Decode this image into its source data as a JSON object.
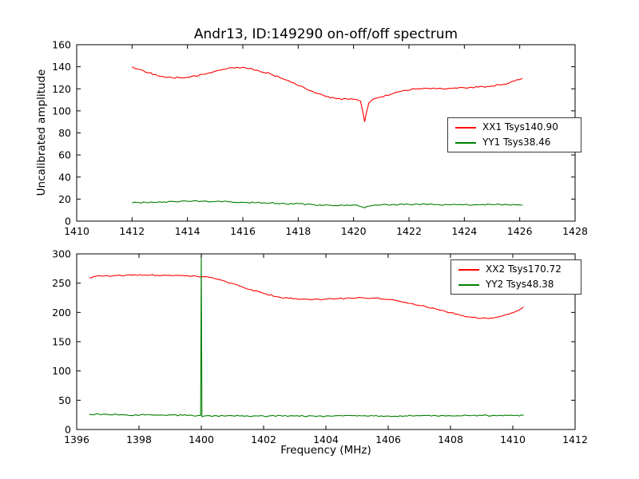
{
  "figure": {
    "title": "Andr13, ID:149290 on-off/off spectrum",
    "xlabel": "Frequency (MHz)",
    "ylabel": "Uncalibrated amplitude",
    "background": "#ffffff",
    "colors": {
      "xx": "#ff0000",
      "yy": "#008000",
      "axis": "#000000"
    }
  },
  "chart_data": [
    {
      "type": "line",
      "title": "Andr13, ID:149290 on-off/off spectrum",
      "ylabel": "Uncalibrated amplitude",
      "xlim": [
        1410,
        1428
      ],
      "ylim": [
        0,
        160
      ],
      "xticks": [
        1410,
        1412,
        1414,
        1416,
        1418,
        1420,
        1422,
        1424,
        1426,
        1428
      ],
      "yticks": [
        0,
        20,
        40,
        60,
        80,
        100,
        120,
        140,
        160
      ],
      "grid": false,
      "legend": {
        "position": "center right",
        "entries": [
          {
            "label": "XX1 Tsys140.90",
            "color": "#ff0000",
            "tsys": 140.9
          },
          {
            "label": "YY1 Tsys38.46",
            "color": "#008000",
            "tsys": 38.46
          }
        ]
      },
      "series": [
        {
          "name": "XX1",
          "color": "#ff0000",
          "points": [
            [
              1412.0,
              140
            ],
            [
              1412.3,
              137.5
            ],
            [
              1412.6,
              134.5
            ],
            [
              1413.0,
              131.5
            ],
            [
              1413.3,
              130.5
            ],
            [
              1413.7,
              130
            ],
            [
              1414.0,
              130.5
            ],
            [
              1414.4,
              132
            ],
            [
              1414.8,
              134.5
            ],
            [
              1415.2,
              137
            ],
            [
              1415.5,
              139
            ],
            [
              1415.8,
              139.5
            ],
            [
              1416.1,
              139
            ],
            [
              1416.5,
              137
            ],
            [
              1417.0,
              133.5
            ],
            [
              1417.5,
              128.5
            ],
            [
              1418.0,
              123
            ],
            [
              1418.5,
              118
            ],
            [
              1419.0,
              113
            ],
            [
              1419.4,
              111
            ],
            [
              1419.8,
              110.5
            ],
            [
              1420.1,
              110.5
            ],
            [
              1420.25,
              109
            ],
            [
              1420.35,
              97
            ],
            [
              1420.4,
              90
            ],
            [
              1420.45,
              97
            ],
            [
              1420.55,
              107
            ],
            [
              1420.7,
              110.5
            ],
            [
              1421.0,
              112.5
            ],
            [
              1421.4,
              115.5
            ],
            [
              1421.8,
              118.5
            ],
            [
              1422.2,
              120
            ],
            [
              1422.6,
              120.5
            ],
            [
              1423.0,
              120
            ],
            [
              1423.5,
              120.5
            ],
            [
              1424.0,
              121
            ],
            [
              1424.5,
              121.5
            ],
            [
              1425.0,
              122.5
            ],
            [
              1425.4,
              124
            ],
            [
              1425.8,
              127
            ],
            [
              1426.1,
              129.5
            ]
          ]
        },
        {
          "name": "YY1",
          "color": "#008000",
          "points": [
            [
              1412.0,
              16.5
            ],
            [
              1412.5,
              17
            ],
            [
              1413.0,
              17.5
            ],
            [
              1413.5,
              17.8
            ],
            [
              1414.0,
              18
            ],
            [
              1414.5,
              18
            ],
            [
              1415.0,
              17.8
            ],
            [
              1415.5,
              17.5
            ],
            [
              1416.0,
              17
            ],
            [
              1416.5,
              16.8
            ],
            [
              1417.0,
              16.5
            ],
            [
              1417.5,
              16
            ],
            [
              1418.0,
              15.8
            ],
            [
              1418.5,
              15
            ],
            [
              1418.9,
              14.2
            ],
            [
              1419.2,
              14.3
            ],
            [
              1419.6,
              14.5
            ],
            [
              1420.0,
              14.6
            ],
            [
              1420.3,
              13
            ],
            [
              1420.4,
              12
            ],
            [
              1420.5,
              13.5
            ],
            [
              1420.8,
              14.8
            ],
            [
              1421.2,
              15
            ],
            [
              1422.0,
              15.2
            ],
            [
              1423.0,
              15.2
            ],
            [
              1424.0,
              15
            ],
            [
              1425.0,
              15
            ],
            [
              1425.6,
              14.8
            ],
            [
              1426.1,
              14.5
            ]
          ]
        }
      ]
    },
    {
      "type": "line",
      "xlabel": "Frequency (MHz)",
      "xlim": [
        1396,
        1412
      ],
      "ylim": [
        0,
        300
      ],
      "xticks": [
        1396,
        1398,
        1400,
        1402,
        1404,
        1406,
        1408,
        1410,
        1412
      ],
      "yticks": [
        0,
        50,
        100,
        150,
        200,
        250,
        300
      ],
      "grid": false,
      "legend": {
        "position": "upper right",
        "entries": [
          {
            "label": "XX2 Tsys170.72",
            "color": "#ff0000",
            "tsys": 170.72
          },
          {
            "label": "YY2 Tsys48.38",
            "color": "#008000",
            "tsys": 48.38
          }
        ]
      },
      "series": [
        {
          "name": "XX2",
          "color": "#ff0000",
          "points": [
            [
              1396.4,
              259
            ],
            [
              1396.6,
              261.5
            ],
            [
              1396.9,
              262.5
            ],
            [
              1397.3,
              263
            ],
            [
              1397.8,
              263.5
            ],
            [
              1398.2,
              264
            ],
            [
              1398.6,
              263.5
            ],
            [
              1399.0,
              263.5
            ],
            [
              1399.4,
              263
            ],
            [
              1399.8,
              262.5
            ],
            [
              1400.1,
              261
            ],
            [
              1400.4,
              258.5
            ],
            [
              1400.7,
              254.5
            ],
            [
              1401.0,
              249.5
            ],
            [
              1401.3,
              244
            ],
            [
              1401.6,
              239
            ],
            [
              1402.0,
              232.5
            ],
            [
              1402.4,
              227
            ],
            [
              1402.8,
              224
            ],
            [
              1403.2,
              222.5
            ],
            [
              1403.6,
              222
            ],
            [
              1404.0,
              222.5
            ],
            [
              1404.4,
              223.5
            ],
            [
              1404.8,
              224.5
            ],
            [
              1405.2,
              225
            ],
            [
              1405.6,
              224.5
            ],
            [
              1406.0,
              222
            ],
            [
              1406.4,
              218.5
            ],
            [
              1406.8,
              214.5
            ],
            [
              1407.2,
              210
            ],
            [
              1407.6,
              205
            ],
            [
              1408.0,
              199.5
            ],
            [
              1408.4,
              194.5
            ],
            [
              1408.7,
              191.5
            ],
            [
              1409.0,
              190
            ],
            [
              1409.3,
              190.5
            ],
            [
              1409.6,
              193
            ],
            [
              1409.9,
              197.5
            ],
            [
              1410.1,
              202
            ],
            [
              1410.35,
              209
            ]
          ]
        },
        {
          "name": "YY2",
          "color": "#008000",
          "points": [
            [
              1396.4,
              26
            ],
            [
              1397.0,
              25.5
            ],
            [
              1397.6,
              25
            ],
            [
              1398.2,
              24.8
            ],
            [
              1398.8,
              24.5
            ],
            [
              1399.4,
              24.2
            ],
            [
              1399.9,
              24
            ],
            [
              1399.98,
              24
            ],
            [
              1400.0,
              300
            ],
            [
              1400.02,
              22
            ],
            [
              1400.1,
              23.2
            ],
            [
              1400.5,
              23.5
            ],
            [
              1401.0,
              23.5
            ],
            [
              1402.0,
              23
            ],
            [
              1403.0,
              23
            ],
            [
              1404.0,
              23
            ],
            [
              1405.0,
              23
            ],
            [
              1406.0,
              23.2
            ],
            [
              1407.0,
              23.5
            ],
            [
              1408.0,
              23.5
            ],
            [
              1409.0,
              23.8
            ],
            [
              1410.0,
              24
            ],
            [
              1410.35,
              24
            ]
          ]
        }
      ]
    }
  ]
}
